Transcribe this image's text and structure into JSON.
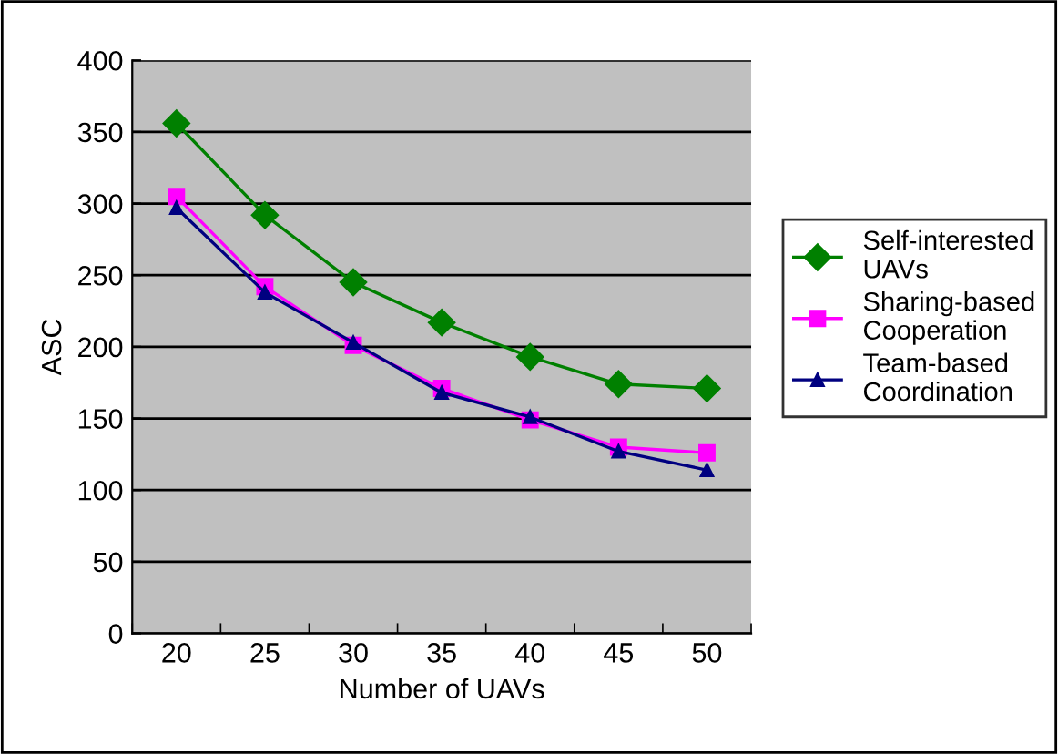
{
  "chart_data": {
    "type": "line",
    "xlabel": "Number of UAVs",
    "ylabel": "ASC",
    "categories": [
      "20",
      "25",
      "30",
      "35",
      "40",
      "45",
      "50"
    ],
    "series": [
      {
        "name": "Self-interested\nUAVs",
        "color": "#008000",
        "marker": "diamond",
        "values": [
          356,
          292,
          245,
          217,
          193,
          174,
          171
        ]
      },
      {
        "name": "Sharing-based\nCooperation",
        "color": "#ff00ff",
        "marker": "square",
        "values": [
          305,
          242,
          201,
          171,
          149,
          130,
          126
        ]
      },
      {
        "name": "Team-based\nCoordination",
        "color": "#000080",
        "marker": "triangle",
        "values": [
          297,
          238,
          203,
          168,
          151,
          127,
          114
        ]
      }
    ],
    "ylim": [
      0,
      400
    ],
    "yticks": [
      0,
      50,
      100,
      150,
      200,
      250,
      300,
      350,
      400
    ],
    "grid": "y",
    "legend": "right"
  }
}
